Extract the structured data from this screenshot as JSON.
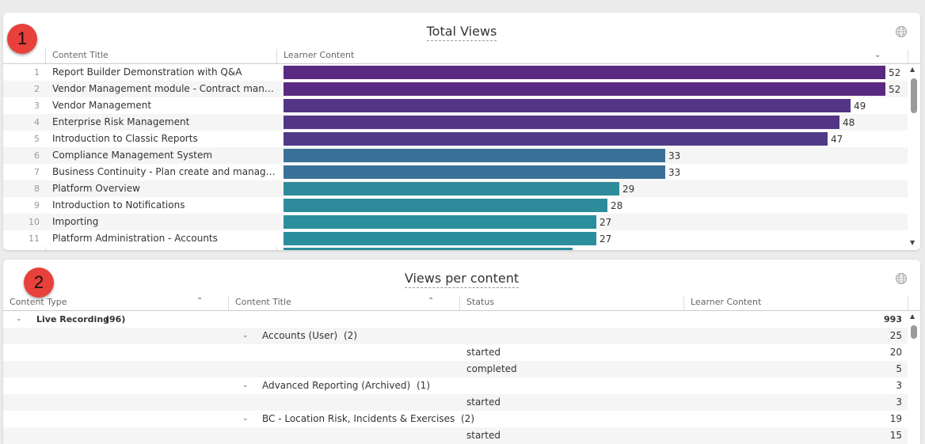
{
  "badges": {
    "one": "1",
    "two": "2"
  },
  "total_views": {
    "title": "Total Views",
    "col_title": "Content Title",
    "col_value": "Learner Content",
    "rows": [
      {
        "n": "1",
        "title": "Report Builder Demonstration with Q&A",
        "value": "52",
        "color": "#5a2a82"
      },
      {
        "n": "2",
        "title": "Vendor Management module - Contract manage...",
        "value": "52",
        "color": "#5a2a82"
      },
      {
        "n": "3",
        "title": "Vendor Management",
        "value": "49",
        "color": "#523585"
      },
      {
        "n": "4",
        "title": "Enterprise Risk Management",
        "value": "48",
        "color": "#523585"
      },
      {
        "n": "5",
        "title": "Introduction to Classic Reports",
        "value": "47",
        "color": "#503a88"
      },
      {
        "n": "6",
        "title": "Compliance Management System",
        "value": "33",
        "color": "#3a7199"
      },
      {
        "n": "7",
        "title": "Business Continuity - Plan create and manageme...",
        "value": "33",
        "color": "#3a7199"
      },
      {
        "n": "8",
        "title": "Platform Overview",
        "value": "29",
        "color": "#2e8b9b"
      },
      {
        "n": "9",
        "title": "Introduction to Notifications",
        "value": "28",
        "color": "#2e8b9b"
      },
      {
        "n": "10",
        "title": "Importing",
        "value": "27",
        "color": "#2b8e9d"
      },
      {
        "n": "11",
        "title": "Platform Administration - Accounts",
        "value": "27",
        "color": "#2b8e9d"
      }
    ]
  },
  "views_per_content": {
    "title": "Views per content",
    "col_type": "Content Type",
    "col_title": "Content Title",
    "col_status": "Status",
    "col_value": "Learner Content",
    "rows": [
      {
        "type": "Live Recording",
        "count": "(96)",
        "title": "",
        "tcount": "",
        "status": "",
        "value": "993"
      },
      {
        "type": "",
        "count": "",
        "title": "Accounts (User)",
        "tcount": "(2)",
        "status": "",
        "value": "25"
      },
      {
        "type": "",
        "count": "",
        "title": "",
        "tcount": "",
        "status": "started",
        "value": "20"
      },
      {
        "type": "",
        "count": "",
        "title": "",
        "tcount": "",
        "status": "completed",
        "value": "5"
      },
      {
        "type": "",
        "count": "",
        "title": "Advanced Reporting (Archived)",
        "tcount": "(1)",
        "status": "",
        "value": "3"
      },
      {
        "type": "",
        "count": "",
        "title": "",
        "tcount": "",
        "status": "started",
        "value": "3"
      },
      {
        "type": "",
        "count": "",
        "title": "BC - Location Risk, Incidents & Exercises",
        "tcount": "(2)",
        "status": "",
        "value": "19"
      },
      {
        "type": "",
        "count": "",
        "title": "",
        "tcount": "",
        "status": "started",
        "value": "15"
      }
    ]
  }
}
